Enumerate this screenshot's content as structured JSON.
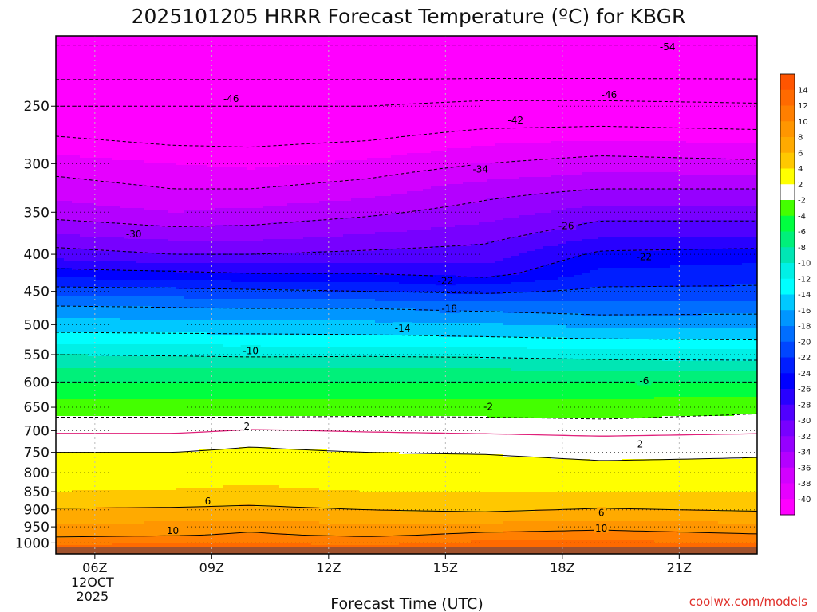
{
  "chart_data": {
    "type": "heatmap",
    "title": "2025101205 HRRR Forecast Temperature (ºC) for KBGR",
    "xlabel": "Forecast Time (UTC)",
    "ylabel": "",
    "credit": "coolwx.com/models",
    "x_ticks": [
      {
        "label": "06Z",
        "sub": [
          "12OCT",
          "2025"
        ],
        "hour": 6
      },
      {
        "label": "09Z",
        "sub": [],
        "hour": 9
      },
      {
        "label": "12Z",
        "sub": [],
        "hour": 12
      },
      {
        "label": "15Z",
        "sub": [],
        "hour": 15
      },
      {
        "label": "18Z",
        "sub": [],
        "hour": 18
      },
      {
        "label": "21Z",
        "sub": [],
        "hour": 21
      }
    ],
    "xlim": [
      5,
      23
    ],
    "y_ticks": [
      250,
      300,
      350,
      400,
      450,
      500,
      550,
      600,
      650,
      700,
      750,
      800,
      850,
      900,
      950,
      1000
    ],
    "ylim_pressure": [
      1035,
      200
    ],
    "y_scale": "log",
    "levels": [
      1025,
      1000,
      975,
      950,
      925,
      900,
      875,
      850,
      825,
      800,
      775,
      750,
      725,
      700,
      675,
      650,
      625,
      600,
      575,
      550,
      525,
      500,
      475,
      450,
      425,
      400,
      375,
      350,
      325,
      300,
      275,
      250,
      225,
      200
    ],
    "grid": "dotted",
    "colorbar": {
      "ticks": [
        14,
        12,
        10,
        8,
        6,
        4,
        2,
        -2,
        -4,
        -6,
        -8,
        -10,
        -12,
        -14,
        -16,
        -18,
        -20,
        -22,
        -24,
        -26,
        -28,
        -30,
        -32,
        -34,
        -36,
        -38,
        -40
      ],
      "bins": [
        {
          "lo": 14,
          "hi": 16,
          "color": "#ff5500"
        },
        {
          "lo": 12,
          "hi": 14,
          "color": "#ff6a00"
        },
        {
          "lo": 10,
          "hi": 12,
          "color": "#ff7f00"
        },
        {
          "lo": 8,
          "hi": 10,
          "color": "#ff9600"
        },
        {
          "lo": 6,
          "hi": 8,
          "color": "#ffaa00"
        },
        {
          "lo": 4,
          "hi": 6,
          "color": "#ffc800"
        },
        {
          "lo": 2,
          "hi": 4,
          "color": "#ffff00"
        },
        {
          "lo": -2,
          "hi": 2,
          "color": "#ffffff"
        },
        {
          "lo": -4,
          "hi": -2,
          "color": "#44ff00"
        },
        {
          "lo": -6,
          "hi": -4,
          "color": "#00ff40"
        },
        {
          "lo": -8,
          "hi": -6,
          "color": "#00f07a"
        },
        {
          "lo": -10,
          "hi": -8,
          "color": "#00e6b4"
        },
        {
          "lo": -12,
          "hi": -10,
          "color": "#00f0e6"
        },
        {
          "lo": -14,
          "hi": -12,
          "color": "#00ffff"
        },
        {
          "lo": -16,
          "hi": -14,
          "color": "#00c8ff"
        },
        {
          "lo": -18,
          "hi": -16,
          "color": "#0096ff"
        },
        {
          "lo": -20,
          "hi": -18,
          "color": "#006eff"
        },
        {
          "lo": -22,
          "hi": -20,
          "color": "#0046ff"
        },
        {
          "lo": -24,
          "hi": -22,
          "color": "#001eff"
        },
        {
          "lo": -26,
          "hi": -24,
          "color": "#0000ff"
        },
        {
          "lo": -28,
          "hi": -26,
          "color": "#2800ff"
        },
        {
          "lo": -30,
          "hi": -28,
          "color": "#5000ff"
        },
        {
          "lo": -32,
          "hi": -30,
          "color": "#7800ff"
        },
        {
          "lo": -34,
          "hi": -32,
          "color": "#9600ff"
        },
        {
          "lo": -36,
          "hi": -34,
          "color": "#b400ff"
        },
        {
          "lo": -38,
          "hi": -36,
          "color": "#d200ff"
        },
        {
          "lo": -40,
          "hi": -38,
          "color": "#e600ff"
        },
        {
          "lo": -90,
          "hi": -40,
          "color": "#ff00ff"
        }
      ],
      "surface_color": "#a0522d"
    },
    "profiles": [
      {
        "hour": 5,
        "temps": [
          14,
          11.5,
          9.5,
          8.5,
          7,
          6.2,
          5,
          4,
          3.5,
          3,
          2.5,
          2,
          1.5,
          -0.5,
          -1.8,
          -3,
          -4.5,
          -6,
          -8,
          -10,
          -13,
          -15,
          -17.5,
          -21,
          -25,
          -29,
          -32,
          -35,
          -37,
          -39,
          -42,
          -46,
          -51,
          -55
        ]
      },
      {
        "hour": 8,
        "temps": [
          14,
          12,
          9.8,
          8.8,
          7.5,
          6.3,
          5.2,
          4.2,
          3.5,
          3,
          2.5,
          2,
          1.5,
          -0.5,
          -1.8,
          -3,
          -4.5,
          -6,
          -8,
          -10.2,
          -13,
          -15.3,
          -17.8,
          -21.2,
          -25.5,
          -30,
          -33,
          -36,
          -38,
          -40,
          -43,
          -46,
          -51,
          -55
        ]
      },
      {
        "hour": 10,
        "temps": [
          14,
          12,
          10.3,
          9.5,
          7.5,
          6.5,
          5.5,
          4.5,
          3.8,
          3.2,
          2.7,
          2.2,
          1.8,
          0.2,
          -1.8,
          -3,
          -4.5,
          -6,
          -8,
          -10.4,
          -13,
          -15.5,
          -18,
          -21.5,
          -26,
          -30,
          -33,
          -35.5,
          -38,
          -40.5,
          -43,
          -46,
          -51,
          -55
        ]
      },
      {
        "hour": 13,
        "temps": [
          14,
          11.5,
          9.6,
          8.5,
          7,
          6,
          5,
          4,
          3.4,
          2.9,
          2.4,
          2,
          1.5,
          -0.2,
          -1.7,
          -3,
          -4.5,
          -6,
          -8,
          -10.3,
          -13.2,
          -15.5,
          -18,
          -22,
          -26,
          -29.5,
          -32,
          -34.5,
          -37,
          -39.5,
          -42.5,
          -46,
          -51,
          -55
        ]
      },
      {
        "hour": 16,
        "temps": [
          14,
          12.5,
          10.5,
          9,
          7,
          5.7,
          4.8,
          4,
          3.4,
          2.9,
          2.4,
          1.9,
          1.3,
          -0.5,
          -1.8,
          -3,
          -4.5,
          -6,
          -8,
          -10.5,
          -13.5,
          -15.8,
          -18.5,
          -22.5,
          -27,
          -29,
          -31,
          -33,
          -35,
          -38,
          -41,
          -45,
          -51,
          -55
        ]
      },
      {
        "hour": 19,
        "temps": [
          14.5,
          12.5,
          10.8,
          9.5,
          7.5,
          6.2,
          5,
          4,
          3.2,
          2.6,
          2.1,
          1.6,
          0.9,
          -0.9,
          -2,
          -3,
          -4.5,
          -6,
          -8.5,
          -10.8,
          -13.8,
          -16.5,
          -19,
          -21.5,
          -23.5,
          -25.5,
          -28.5,
          -31,
          -34,
          -37,
          -40.5,
          -45,
          -51,
          -55
        ]
      },
      {
        "hour": 23,
        "temps": [
          14,
          12,
          10.2,
          8.8,
          7,
          5.8,
          5,
          4,
          3.3,
          2.7,
          2.2,
          1.8,
          1.3,
          -0.5,
          -1.6,
          -2.5,
          -4.2,
          -6,
          -8.5,
          -11,
          -14,
          -16.5,
          -18.8,
          -21.5,
          -23,
          -25,
          -28.5,
          -31,
          -34,
          -37.5,
          -41,
          -45.5,
          -51,
          -55
        ]
      }
    ],
    "contour_levels": [
      -54,
      -50,
      -46,
      -42,
      -38,
      -34,
      -30,
      -26,
      -22,
      -18,
      -14,
      -10,
      -6,
      -2,
      2,
      6,
      10,
      14
    ],
    "zero_isotherm_color": "#e0207a",
    "contour_labels": [
      {
        "text": "-54",
        "hour": 20.7,
        "p": 207
      },
      {
        "text": "-46",
        "hour": 9.5,
        "p": 244
      },
      {
        "text": "-46",
        "hour": 19.2,
        "p": 241
      },
      {
        "text": "-42",
        "hour": 16.8,
        "p": 261
      },
      {
        "text": "-34",
        "hour": 15.9,
        "p": 305
      },
      {
        "text": "-30",
        "hour": 7.0,
        "p": 375
      },
      {
        "text": "-26",
        "hour": 18.1,
        "p": 365
      },
      {
        "text": "-22",
        "hour": 20.1,
        "p": 403
      },
      {
        "text": "-22",
        "hour": 15.0,
        "p": 435
      },
      {
        "text": "-18",
        "hour": 15.1,
        "p": 475
      },
      {
        "text": "-14",
        "hour": 13.9,
        "p": 505
      },
      {
        "text": "-10",
        "hour": 10.0,
        "p": 543
      },
      {
        "text": "-6",
        "hour": 20.1,
        "p": 597
      },
      {
        "text": "-2",
        "hour": 16.1,
        "p": 648
      },
      {
        "text": "2",
        "hour": 9.9,
        "p": 690
      },
      {
        "text": "2",
        "hour": 20.0,
        "p": 730
      },
      {
        "text": "6",
        "hour": 8.9,
        "p": 875
      },
      {
        "text": "6",
        "hour": 19.0,
        "p": 908
      },
      {
        "text": "10",
        "hour": 8.0,
        "p": 961
      },
      {
        "text": "10",
        "hour": 19.0,
        "p": 953
      }
    ]
  }
}
